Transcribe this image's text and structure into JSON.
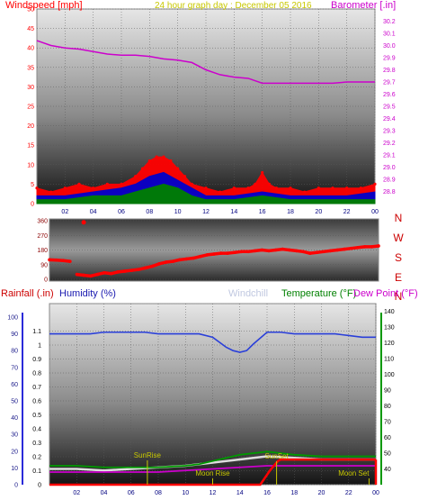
{
  "header": {
    "wind_label": "Windspeed [mph]",
    "center_title": "24 hour graph day : December 05 2016",
    "baro_label": "Barometer [.in]"
  },
  "direction": {
    "compass_labels": [
      "N",
      "W",
      "S",
      "E",
      "N"
    ]
  },
  "lower_header": {
    "rain_label": "Rainfall (.in)",
    "humidity_label": "Humidity (%)",
    "windchill_label": "Windchill",
    "temp_label": "Temperature (°F)",
    "dew_label": "Dew Point (°F)"
  },
  "annotations": {
    "sunrise": "SunRise",
    "sunset": "SunSet",
    "moonrise": "Moon Rise",
    "moonset": "Moon Set"
  },
  "colors": {
    "wind": "#ff0000",
    "gust": "#0000cc",
    "avg_wind": "#008000",
    "barometer": "#cc00cc",
    "humidity": "#2a3fd9",
    "temperature": "#009900",
    "rain": "#ff0000",
    "dewpoint": "#cc00cc",
    "windchill": "#dddddd",
    "sun_moon": "#c8c800"
  },
  "chart_data": [
    {
      "type": "area",
      "title": "24 hour graph day : December 05 2016",
      "xlabel": "",
      "ylabel": "Windspeed [mph]",
      "y2label": "Barometer [.in]",
      "x_ticks": [
        "02",
        "04",
        "06",
        "08",
        "10",
        "12",
        "14",
        "16",
        "18",
        "20",
        "22",
        "00"
      ],
      "ylim": [
        0,
        50
      ],
      "y_ticks": [
        0,
        5,
        10,
        15,
        20,
        25,
        30,
        35,
        40,
        45,
        50
      ],
      "y2lim": [
        28.7,
        30.3
      ],
      "y2_ticks": [
        28.8,
        28.9,
        29.0,
        29.1,
        29.2,
        29.3,
        29.4,
        29.5,
        29.6,
        29.7,
        29.8,
        29.9,
        30.0,
        30.1,
        30.2
      ],
      "grid": true,
      "series": [
        {
          "name": "Windspeed [mph]",
          "x": [
            0,
            1,
            2,
            3,
            4,
            5,
            6,
            7,
            7.5,
            8,
            8.5,
            9,
            9.5,
            10,
            10.5,
            11,
            12,
            13,
            14,
            15,
            15.5,
            16,
            16.5,
            17,
            18,
            19,
            20,
            21,
            22,
            23,
            24
          ],
          "y": [
            4,
            3,
            4,
            5,
            4,
            5,
            5,
            7,
            9,
            11,
            12,
            12,
            11,
            9,
            7,
            5,
            4,
            3,
            4,
            4,
            5,
            8,
            5,
            4,
            4,
            3,
            4,
            4,
            4,
            4,
            5
          ]
        },
        {
          "name": "Gust",
          "x": [
            0,
            2,
            4,
            6,
            7,
            8,
            9,
            10,
            11,
            12,
            14,
            16,
            18,
            20,
            22,
            24
          ],
          "y": [
            2,
            2,
            3,
            4,
            5,
            7,
            8,
            6,
            4,
            2,
            2,
            3,
            2,
            2,
            2,
            3
          ]
        },
        {
          "name": "Average",
          "x": [
            0,
            2,
            4,
            6,
            7,
            8,
            9,
            10,
            11,
            12,
            14,
            16,
            18,
            20,
            22,
            24
          ],
          "y": [
            1,
            1,
            2,
            2,
            3,
            4,
            5,
            4,
            2,
            1,
            1,
            2,
            1,
            1,
            1,
            1
          ]
        },
        {
          "name": "Barometer [.in]",
          "axis": "right",
          "x": [
            0,
            1,
            2,
            3,
            4,
            5,
            6,
            7,
            8,
            9,
            10,
            11,
            12,
            13,
            14,
            15,
            16,
            17,
            18,
            19,
            20,
            21,
            22,
            23,
            24
          ],
          "y": [
            30.04,
            30.0,
            29.98,
            29.97,
            29.95,
            29.93,
            29.92,
            29.92,
            29.91,
            29.89,
            29.88,
            29.86,
            29.8,
            29.76,
            29.74,
            29.73,
            29.69,
            29.69,
            29.69,
            29.69,
            29.69,
            29.69,
            29.7,
            29.7,
            29.7
          ]
        }
      ]
    },
    {
      "type": "scatter",
      "title": "",
      "ylabel": "",
      "ylim": [
        0,
        360
      ],
      "y_ticks": [
        0,
        90,
        180,
        270,
        360
      ],
      "series": [
        {
          "name": "Wind direction",
          "x": [
            0,
            0.5,
            1,
            1.5,
            2,
            2.5,
            3,
            3.5,
            4,
            4.5,
            5,
            5.5,
            6,
            6.5,
            7,
            7.5,
            8,
            8.5,
            9,
            9.5,
            10,
            10.5,
            11,
            11.5,
            12,
            12.5,
            13,
            13.5,
            14,
            14.5,
            15,
            15.5,
            16,
            16.5,
            17,
            17.5,
            18,
            18.5,
            19,
            19.5,
            20,
            20.5,
            21,
            21.5,
            22,
            22.5,
            23,
            23.5,
            24
          ],
          "y": [
            120,
            118,
            115,
            110,
            30,
            25,
            20,
            30,
            40,
            35,
            45,
            50,
            55,
            60,
            70,
            80,
            95,
            105,
            110,
            120,
            125,
            130,
            140,
            150,
            155,
            160,
            160,
            165,
            170,
            170,
            175,
            180,
            175,
            180,
            185,
            180,
            175,
            170,
            160,
            165,
            170,
            175,
            180,
            185,
            190,
            195,
            200,
            200,
            205
          ]
        }
      ]
    },
    {
      "type": "line",
      "title": "",
      "ylabel": "Rainfall (.in)",
      "y2label": "Temperature (°F)",
      "x_ticks": [
        "02",
        "04",
        "06",
        "08",
        "10",
        "12",
        "14",
        "16",
        "18",
        "20",
        "22",
        "00"
      ],
      "ylim": [
        0,
        1.2
      ],
      "y_ticks": [
        0,
        0.1,
        0.2,
        0.3,
        0.4,
        0.5,
        0.6,
        0.7,
        0.8,
        0.9,
        1,
        1.1
      ],
      "humidity_ticks": [
        0,
        10,
        20,
        30,
        40,
        50,
        60,
        70,
        80,
        90,
        100
      ],
      "y2lim": [
        30,
        145
      ],
      "y2_ticks": [
        40,
        50,
        60,
        70,
        80,
        90,
        100,
        110,
        120,
        130,
        140
      ],
      "grid": true,
      "series": [
        {
          "name": "Humidity (%)",
          "axis": "humidity",
          "x": [
            0,
            1,
            2,
            3,
            4,
            5,
            6,
            7,
            8,
            9,
            10,
            11,
            12,
            13,
            13.5,
            14,
            14.5,
            15,
            16,
            17,
            18,
            19,
            20,
            21,
            22,
            23,
            24
          ],
          "y": [
            90,
            90,
            90,
            90,
            91,
            91,
            91,
            91,
            90,
            90,
            90,
            90,
            88,
            82,
            80,
            79,
            80,
            84,
            91,
            91,
            90,
            90,
            90,
            90,
            89,
            88,
            88
          ]
        },
        {
          "name": "Temperature (°F)",
          "axis": "right",
          "x": [
            0,
            2,
            4,
            6,
            8,
            10,
            11,
            12,
            13,
            14,
            15,
            16,
            17,
            18,
            20,
            22,
            24
          ],
          "y": [
            42,
            42,
            41,
            41,
            41,
            42,
            43,
            45,
            47,
            49,
            50,
            51,
            50,
            49,
            48,
            48,
            48
          ]
        },
        {
          "name": "Dew Point (°F)",
          "axis": "right",
          "x": [
            0,
            2,
            4,
            6,
            8,
            10,
            12,
            14,
            16,
            18,
            20,
            22,
            24
          ],
          "y": [
            38,
            38,
            38,
            38,
            38,
            39,
            40,
            41,
            42,
            42,
            42,
            42,
            42
          ]
        },
        {
          "name": "Windchill",
          "axis": "right",
          "x": [
            0,
            2,
            4,
            6,
            8,
            10,
            12,
            14,
            16,
            18,
            20,
            22,
            24
          ],
          "y": [
            40,
            40,
            39,
            40,
            41,
            42,
            44,
            46,
            48,
            47,
            46,
            46,
            46
          ]
        },
        {
          "name": "Rainfall (.in)",
          "axis": "left",
          "x": [
            0,
            14,
            15.5,
            16.2,
            16.8,
            17,
            24
          ],
          "y": [
            0,
            0,
            0,
            0.1,
            0.17,
            0.18,
            0.18
          ]
        }
      ],
      "events": [
        {
          "label": "SunRise",
          "x": 7.2
        },
        {
          "label": "SunSet",
          "x": 16.7
        },
        {
          "label": "Moon Rise",
          "x": 12.0
        },
        {
          "label": "Moon Set",
          "x": 23.5
        }
      ]
    }
  ]
}
